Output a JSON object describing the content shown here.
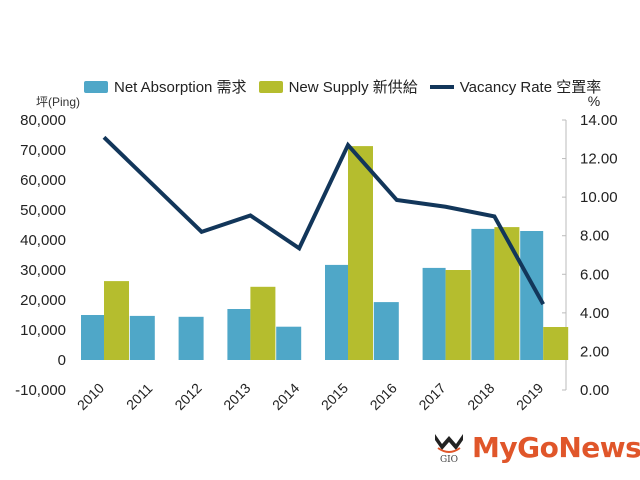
{
  "legend": {
    "items": [
      {
        "label": "Net Absorption 需求",
        "color": "#4fa7c8",
        "kind": "bar"
      },
      {
        "label": "New Supply 新供給",
        "color": "#b5bd2e",
        "kind": "bar"
      },
      {
        "label": "Vacancy Rate 空置率",
        "color": "#12365a",
        "kind": "line"
      }
    ]
  },
  "axes": {
    "left_unit": "坪(Ping)",
    "right_unit": "%",
    "left_ticks": [
      "80,000",
      "70,000",
      "60,000",
      "50,000",
      "40,000",
      "30,000",
      "20,000",
      "10,000",
      "0",
      "-10,000"
    ],
    "right_ticks": [
      "14.00",
      "12.00",
      "10.00",
      "8.00",
      "6.00",
      "4.00",
      "2.00",
      "0.00"
    ]
  },
  "logo": {
    "text": "MyGoNews",
    "mark": "GIO"
  },
  "chart_data": {
    "type": "bar",
    "title": "",
    "categories": [
      "2010",
      "2011",
      "2012",
      "2013",
      "2014",
      "2015",
      "2016",
      "2017",
      "2018",
      "2019"
    ],
    "series": [
      {
        "name": "Net Absorption 需求",
        "type": "bar",
        "axis": "left",
        "color": "#4fa7c8",
        "values": [
          15000,
          14700,
          14400,
          17000,
          11100,
          31700,
          19300,
          30700,
          43700,
          43000
        ]
      },
      {
        "name": "New Supply 新供給",
        "type": "bar",
        "axis": "left",
        "color": "#b5bd2e",
        "values": [
          26300,
          null,
          null,
          24400,
          null,
          71300,
          null,
          30000,
          44300,
          11000
        ]
      },
      {
        "name": "Vacancy Rate 空置率",
        "type": "line",
        "axis": "right",
        "color": "#12365a",
        "values": [
          13.1,
          10.65,
          8.2,
          9.05,
          7.35,
          12.7,
          9.85,
          9.5,
          9.0,
          4.45
        ]
      }
    ],
    "xlabel": "",
    "ylabel": "坪(Ping)",
    "y2label": "%",
    "ylim": [
      -10000,
      80000
    ],
    "y2lim": [
      0,
      14
    ],
    "grid": false,
    "legend_position": "top"
  }
}
